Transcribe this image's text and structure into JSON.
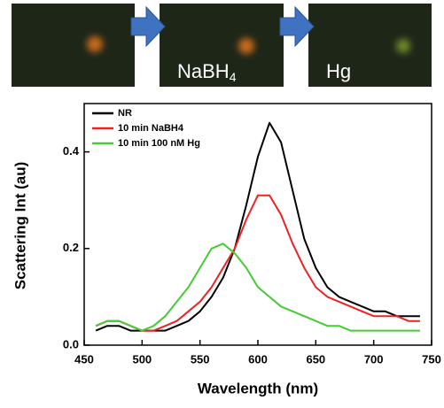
{
  "panels": [
    {
      "label": null
    },
    {
      "label": "NaBH",
      "label_sub": "4"
    },
    {
      "label": "Hg"
    }
  ],
  "chart_data": {
    "type": "line",
    "x_label": "Wavelength (nm)",
    "y_label": "Scattering Int (au)",
    "x": [
      460,
      470,
      480,
      490,
      500,
      510,
      520,
      530,
      540,
      550,
      560,
      570,
      580,
      590,
      600,
      610,
      620,
      630,
      640,
      650,
      660,
      670,
      680,
      690,
      700,
      710,
      720,
      730,
      740
    ],
    "series": [
      {
        "name": "NR",
        "color": "#000000",
        "values": [
          0.03,
          0.04,
          0.04,
          0.03,
          0.03,
          0.03,
          0.03,
          0.04,
          0.05,
          0.07,
          0.1,
          0.14,
          0.2,
          0.29,
          0.39,
          0.46,
          0.42,
          0.32,
          0.22,
          0.16,
          0.12,
          0.1,
          0.09,
          0.08,
          0.07,
          0.07,
          0.06,
          0.06,
          0.06
        ]
      },
      {
        "name": "10 min NaBH4",
        "color": "#ee2222",
        "values": [
          0.04,
          0.05,
          0.05,
          0.04,
          0.03,
          0.03,
          0.04,
          0.05,
          0.07,
          0.09,
          0.12,
          0.16,
          0.2,
          0.26,
          0.31,
          0.31,
          0.27,
          0.21,
          0.16,
          0.12,
          0.1,
          0.09,
          0.08,
          0.07,
          0.06,
          0.06,
          0.06,
          0.05,
          0.05
        ]
      },
      {
        "name": "10 min 100 nM Hg",
        "color": "#44cc33",
        "values": [
          0.04,
          0.05,
          0.05,
          0.04,
          0.03,
          0.04,
          0.06,
          0.09,
          0.12,
          0.16,
          0.2,
          0.21,
          0.19,
          0.16,
          0.12,
          0.1,
          0.08,
          0.07,
          0.06,
          0.05,
          0.04,
          0.04,
          0.03,
          0.03,
          0.03,
          0.03,
          0.03,
          0.03,
          0.03
        ]
      }
    ],
    "xlim": [
      450,
      750
    ],
    "xticks": [
      450,
      500,
      550,
      600,
      650,
      700,
      750
    ],
    "ylim": [
      0,
      0.5
    ],
    "yticks": [
      {
        "value": 0,
        "label": "0.0"
      },
      0.2,
      0.4
    ],
    "legend": "upper-left"
  }
}
